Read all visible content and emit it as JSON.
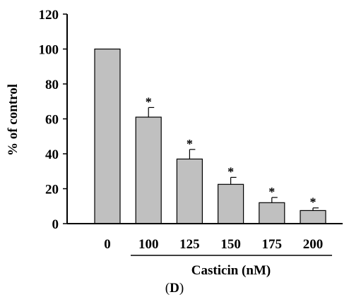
{
  "chart_data": {
    "type": "bar",
    "categories": [
      "0",
      "100",
      "125",
      "150",
      "175",
      "200"
    ],
    "values": [
      100,
      61,
      37,
      22.5,
      12,
      7.5
    ],
    "error": [
      0,
      5.5,
      5.5,
      4,
      3,
      1.5
    ],
    "significance": [
      "",
      "*",
      "*",
      "*",
      "*",
      "*"
    ],
    "ylabel": "% of control",
    "xlabel": "Casticin (nM)",
    "yticks": [
      0,
      20,
      40,
      60,
      80,
      100,
      120
    ],
    "ylim": [
      0,
      120
    ],
    "grid": false,
    "bar_color": "#c0c0c0",
    "panel_label": {
      "open": "(",
      "letter": "D",
      "close": ")"
    }
  }
}
